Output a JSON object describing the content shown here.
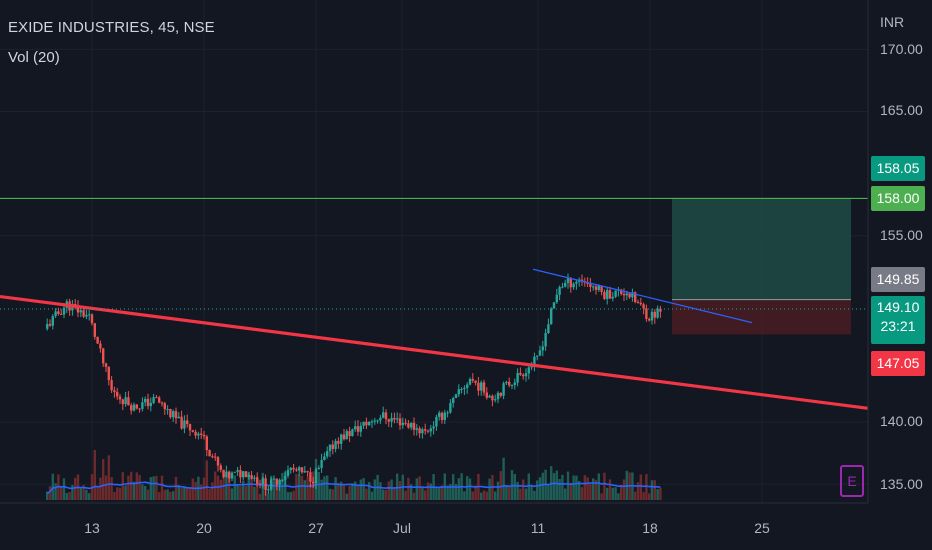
{
  "header": {
    "title": "EXIDE INDUSTRIES, 45, NSE",
    "indicator": "Vol (20)"
  },
  "axis": {
    "currency": "INR",
    "y_labels": [
      "170.00",
      "165.00",
      "155.00",
      "140.00",
      "135.00"
    ],
    "x_labels": [
      "13",
      "20",
      "27",
      "Jul",
      "11",
      "18",
      "25"
    ]
  },
  "tags": {
    "target_high": "158.05",
    "target": "158.00",
    "entry": "149.85",
    "last_price": "149.10",
    "countdown": "23:21",
    "stop": "147.05"
  },
  "badge": {
    "label": "E"
  },
  "colors": {
    "background": "#131722",
    "up": "#26a69a",
    "down": "#ef5350",
    "trendline": "#f23645",
    "wedge": "#2962ff",
    "target_line": "#4caf50",
    "volume_ma": "#2962ff",
    "profit_zone": "#1f4b45",
    "loss_zone": "#4a1c22"
  },
  "chart_data": {
    "type": "candlestick",
    "symbol": "EXIDE INDUSTRIES",
    "interval": "45",
    "exchange": "NSE",
    "currency": "INR",
    "ylim": [
      133.0,
      172.0
    ],
    "y_ticks": [
      170.0,
      165.0,
      155.0,
      140.0,
      135.0
    ],
    "x_ticks": [
      "13",
      "20",
      "27",
      "Jul",
      "11",
      "18",
      "25"
    ],
    "trend_points": [
      {
        "date": "Jun 08",
        "close": 147.5
      },
      {
        "date": "Jun 09",
        "close": 149.5
      },
      {
        "date": "Jun 10",
        "close": 148.5
      },
      {
        "date": "Jun 13",
        "close": 142.5
      },
      {
        "date": "Jun 14",
        "close": 141.2
      },
      {
        "date": "Jun 15",
        "close": 141.8
      },
      {
        "date": "Jun 16",
        "close": 140.0
      },
      {
        "date": "Jun 17",
        "close": 139.0
      },
      {
        "date": "Jun 20",
        "close": 135.5
      },
      {
        "date": "Jun 21",
        "close": 136.0
      },
      {
        "date": "Jun 22",
        "close": 134.8
      },
      {
        "date": "Jun 23",
        "close": 136.2
      },
      {
        "date": "Jun 24",
        "close": 135.5
      },
      {
        "date": "Jun 27",
        "close": 138.5
      },
      {
        "date": "Jun 28",
        "close": 139.5
      },
      {
        "date": "Jun 29",
        "close": 140.5
      },
      {
        "date": "Jun 30",
        "close": 140.0
      },
      {
        "date": "Jul 01",
        "close": 139.2
      },
      {
        "date": "Jul 04",
        "close": 141.0
      },
      {
        "date": "Jul 05",
        "close": 143.5
      },
      {
        "date": "Jul 06",
        "close": 142.0
      },
      {
        "date": "Jul 07",
        "close": 143.5
      },
      {
        "date": "Jul 08",
        "close": 145.0
      },
      {
        "date": "Jul 11",
        "close": 151.0
      },
      {
        "date": "Jul 12",
        "close": 151.5
      },
      {
        "date": "Jul 13",
        "close": 150.3
      },
      {
        "date": "Jul 14",
        "close": 150.5
      },
      {
        "date": "Jul 15",
        "close": 148.5
      },
      {
        "date": "Jul 18",
        "close": 149.4
      },
      {
        "date": "Jul 19",
        "close": 149.1
      }
    ],
    "volume_ma_period": 20,
    "drawings": [
      {
        "type": "trendline",
        "name": "descending trendline",
        "from": {
          "date": "Jun 06",
          "price": 150.1
        },
        "to": {
          "date": "Jul 29",
          "price": 141.1
        }
      },
      {
        "type": "trendline",
        "name": "wedge resistance",
        "from": {
          "date": "Jul 11",
          "price": 152.3
        },
        "to": {
          "date": "Jul 23",
          "price": 148.0
        }
      },
      {
        "type": "horizontal_line",
        "price": 158.0
      },
      {
        "type": "long_position",
        "entry": 149.85,
        "target": 158.05,
        "stop": 147.05
      }
    ],
    "last_price": 149.1,
    "countdown": "23:21"
  }
}
